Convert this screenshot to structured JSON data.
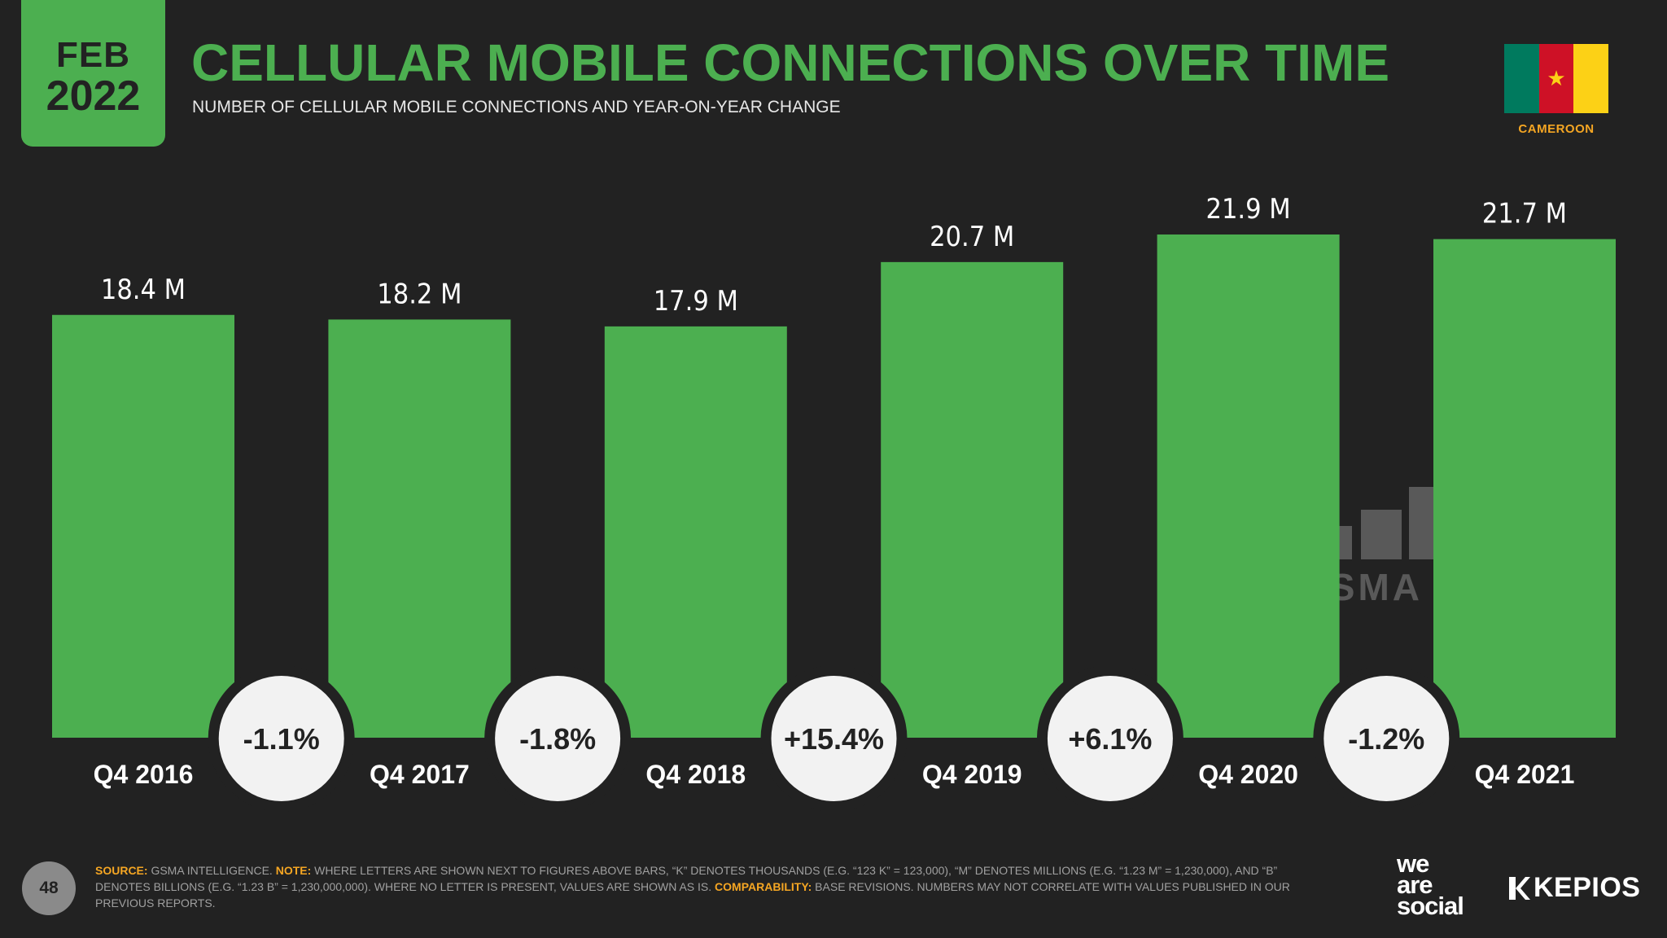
{
  "header": {
    "month": "FEB",
    "year": "2022",
    "title": "CELLULAR MOBILE CONNECTIONS OVER TIME",
    "subtitle": "NUMBER OF CELLULAR MOBILE CONNECTIONS AND YEAR-ON-YEAR CHANGE",
    "country": "CAMEROON"
  },
  "colors": {
    "accent": "#4caf50",
    "background": "#222222",
    "highlight": "#f5a623",
    "flag": [
      "#007a5e",
      "#ce1126",
      "#fcd116"
    ]
  },
  "chart_data": {
    "type": "bar",
    "title": "CELLULAR MOBILE CONNECTIONS OVER TIME",
    "xlabel": "",
    "ylabel": "",
    "categories": [
      "Q4 2016",
      "Q4 2017",
      "Q4 2018",
      "Q4 2019",
      "Q4 2020",
      "Q4 2021"
    ],
    "values": [
      18.4,
      18.2,
      17.9,
      20.7,
      21.9,
      21.7
    ],
    "value_labels": [
      "18.4 M",
      "18.2 M",
      "17.9 M",
      "20.7 M",
      "21.9 M",
      "21.7 M"
    ],
    "unit": "M",
    "changes": [
      "-1.1%",
      "-1.8%",
      "+15.4%",
      "+6.1%",
      "-1.2%"
    ],
    "ylim": [
      0,
      21.9
    ],
    "grid": false,
    "watermark": "GSMA"
  },
  "footer": {
    "page_number": "48",
    "source_label": "SOURCE:",
    "source_text": " GSMA INTELLIGENCE. ",
    "note_label": "NOTE:",
    "note_text": " WHERE LETTERS ARE SHOWN NEXT TO FIGURES ABOVE BARS, “K” DENOTES THOUSANDS (E.G. “123 K” = 123,000), “M” DENOTES MILLIONS (E.G. “1.23 M” = 1,230,000), AND “B” DENOTES BILLIONS (E.G. “1.23 B” = 1,230,000,000). WHERE NO LETTER IS PRESENT, VALUES ARE SHOWN AS IS. ",
    "comparability_label": "COMPARABILITY:",
    "comparability_text": " BASE REVISIONS. NUMBERS MAY NOT CORRELATE WITH VALUES PUBLISHED IN OUR PREVIOUS REPORTS.",
    "logo_was": [
      "we",
      "are",
      "social"
    ],
    "logo_kepios": "KEPIOS"
  }
}
